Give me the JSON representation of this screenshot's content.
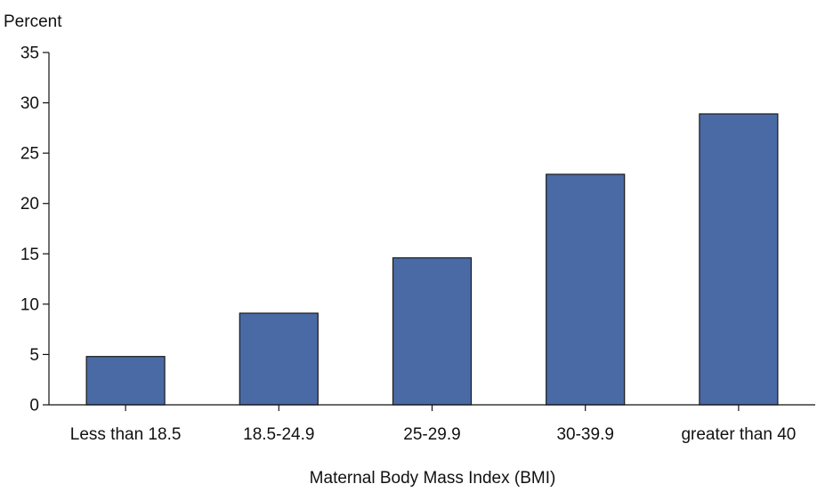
{
  "colors": {
    "bar_fill": "#4a6aa5",
    "bar_stroke": "#1a1a1a",
    "axis": "#111111",
    "text": "#111111",
    "background": "#ffffff"
  },
  "chart_data": {
    "type": "bar",
    "title": "",
    "ylabel": "Percent",
    "xlabel": "Maternal Body Mass Index (BMI)",
    "categories": [
      "Less than 18.5",
      "18.5-24.9",
      "25-29.9",
      "30-39.9",
      "greater than 40"
    ],
    "values": [
      4.8,
      9.1,
      14.6,
      22.9,
      28.9
    ],
    "ylim": [
      0,
      35
    ],
    "yticks": [
      0,
      5,
      10,
      15,
      20,
      25,
      30,
      35
    ],
    "grid": false,
    "legend": "none"
  }
}
